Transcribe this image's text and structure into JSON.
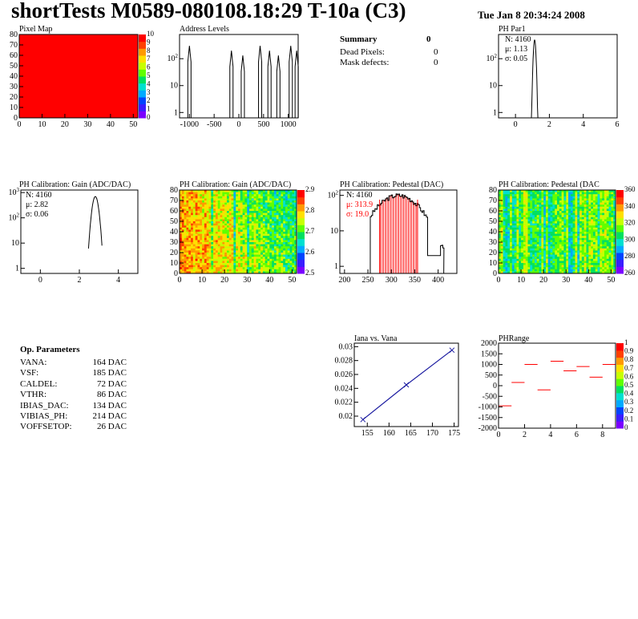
{
  "header": {
    "title": "shortTests M0589-080108.18:29 T-10a (C3)",
    "date": "Tue Jan  8 20:34:24 2008"
  },
  "summary": {
    "title": "Summary",
    "title_value": "0",
    "rows": [
      {
        "label": "Dead Pixels:",
        "value": "0"
      },
      {
        "label": "Mask defects:",
        "value": "0"
      }
    ]
  },
  "op_params": {
    "title": "Op. Parameters",
    "rows": [
      {
        "label": "VANA:",
        "value": "164 DAC"
      },
      {
        "label": "VSF:",
        "value": "185 DAC"
      },
      {
        "label": "CALDEL:",
        "value": "72 DAC"
      },
      {
        "label": "VTHR:",
        "value": "86 DAC"
      },
      {
        "label": "IBIAS_DAC:",
        "value": "134 DAC"
      },
      {
        "label": "VIBIAS_PH:",
        "value": "214 DAC"
      },
      {
        "label": "VOFFSETOP:",
        "value": "26 DAC"
      }
    ]
  },
  "colors": {
    "line": "#000000",
    "red": "#ff0000",
    "blue": "#1a1aa0",
    "pixel_fill": "#ff0000"
  },
  "chart_data": [
    {
      "id": "pixel-map",
      "type": "heatmap",
      "title": "Pixel Map",
      "xlim": [
        0,
        52
      ],
      "ylim": [
        0,
        80
      ],
      "xticks": [
        "0",
        "10",
        "20",
        "30",
        "40",
        "50"
      ],
      "yticks": [
        "0",
        "10",
        "20",
        "30",
        "40",
        "50",
        "60",
        "70",
        "80"
      ],
      "palette_ticks": [
        "0",
        "1",
        "2",
        "3",
        "4",
        "5",
        "6",
        "7",
        "8",
        "9",
        "10"
      ],
      "zlim": [
        0,
        10
      ],
      "uniform_value": 10
    },
    {
      "id": "address-levels",
      "type": "bar",
      "title": "Address Levels",
      "xlim": [
        -1200,
        1200
      ],
      "xticks": [
        "-1000",
        "-500",
        "0",
        "500",
        "1000"
      ],
      "yscale": "log",
      "yticks": [
        "1",
        "10",
        "10^2"
      ],
      "peaks_x": [
        -1000,
        -150,
        80,
        430,
        620,
        800,
        1050,
        1170
      ],
      "peak_y": 300
    },
    {
      "id": "ph-par1",
      "type": "bar",
      "title": "PH Par1",
      "xlim": [
        -1,
        6
      ],
      "xticks": [
        "0",
        "2",
        "4",
        "6"
      ],
      "yscale": "log",
      "yticks": [
        "1",
        "10",
        "10^2"
      ],
      "stats": {
        "N": "N: 4160",
        "mu": "μ: 1.13",
        "sigma": "σ: 0.05"
      },
      "mean": 1.13,
      "peak": 500,
      "width": 0.12
    },
    {
      "id": "ph-gain-hist",
      "type": "bar",
      "title": "PH Calibration: Gain (ADC/DAC)",
      "xlim": [
        -1,
        5
      ],
      "xticks": [
        "0",
        "2",
        "4"
      ],
      "yscale": "log",
      "yticks": [
        "1",
        "10",
        "10^2",
        "10^3"
      ],
      "stats": {
        "N": "N: 4160",
        "mu": "μ: 2.82",
        "sigma": "σ: 0.06"
      },
      "mean": 2.82,
      "peak": 700,
      "width": 0.25
    },
    {
      "id": "ph-gain-map",
      "type": "heatmap",
      "title": "PH Calibration: Gain (ADC/DAC)",
      "xlim": [
        0,
        52
      ],
      "ylim": [
        0,
        80
      ],
      "xticks": [
        "0",
        "10",
        "20",
        "30",
        "40",
        "50"
      ],
      "yticks": [
        "0",
        "10",
        "20",
        "30",
        "40",
        "50",
        "60",
        "70",
        "80"
      ],
      "palette_ticks": [
        "2.5",
        "2.6",
        "2.7",
        "2.8",
        "2.9"
      ]
    },
    {
      "id": "ph-pedestal-hist",
      "type": "bar",
      "title": "PH Calibration: Pedestal (DAC)",
      "xlim": [
        190,
        440
      ],
      "xticks": [
        "200",
        "250",
        "300",
        "350",
        "400"
      ],
      "yscale": "log",
      "yticks": [
        "1",
        "10",
        "10^2"
      ],
      "stats": {
        "N": "N: 4160",
        "mu": "μ: 313.9",
        "sigma": "σ: 19.0"
      },
      "mean": 313.9,
      "sigma": 19.0,
      "peak": 100,
      "lines_x": [
        275,
        356
      ]
    },
    {
      "id": "ph-pedestal-map",
      "type": "heatmap",
      "title": "PH Calibration: Pedestal (DAC",
      "xlim": [
        0,
        52
      ],
      "ylim": [
        0,
        80
      ],
      "xticks": [
        "0",
        "10",
        "20",
        "30",
        "40",
        "50"
      ],
      "yticks": [
        "0",
        "10",
        "20",
        "30",
        "40",
        "50",
        "60",
        "70",
        "80"
      ],
      "palette_ticks": [
        "260",
        "280",
        "300",
        "320",
        "340",
        "360"
      ]
    },
    {
      "id": "iana-vs-vana",
      "type": "line",
      "title": "Iana vs. Vana",
      "xlim": [
        152,
        176
      ],
      "ylim": [
        0.0185,
        0.0305
      ],
      "xticks": [
        "155",
        "160",
        "165",
        "170",
        "175"
      ],
      "yticks": [
        "0.02",
        "0.022",
        "0.024",
        "0.026",
        "0.028",
        "0.03"
      ],
      "x": [
        154,
        164,
        174.5
      ],
      "y": [
        0.0195,
        0.0245,
        0.0295
      ]
    },
    {
      "id": "ph-range",
      "type": "scatter",
      "title": "PHRange",
      "xlim": [
        0,
        9
      ],
      "ylim": [
        -2000,
        2000
      ],
      "xticks": [
        "0",
        "2",
        "4",
        "6",
        "8"
      ],
      "yticks": [
        "2000",
        "1500",
        "1000",
        "500",
        "0",
        "-500",
        "-1000",
        "-1500",
        "-2000"
      ],
      "palette_ticks": [
        "0",
        "0.1",
        "0.2",
        "0.3",
        "0.4",
        "0.5",
        "0.6",
        "0.7",
        "0.8",
        "0.9",
        "1"
      ],
      "x": [
        0.5,
        1.5,
        2.5,
        3.5,
        4.5,
        5.5,
        6.5,
        7.5,
        8.5
      ],
      "y": [
        -950,
        150,
        1000,
        -200,
        1150,
        700,
        900,
        400,
        1000
      ]
    }
  ]
}
